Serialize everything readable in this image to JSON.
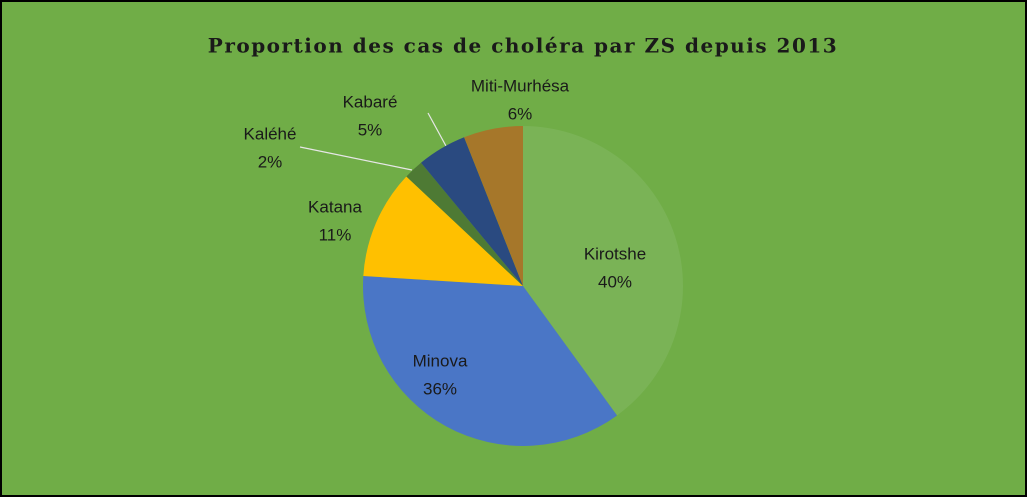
{
  "chart_data": {
    "type": "pie",
    "title": "Proportion des cas de choléra par ZS depuis 2013",
    "categories": [
      "Kirotshe",
      "Minova",
      "Katana",
      "Kaléhé",
      "Kabaré",
      "Miti-Murhésa"
    ],
    "values": [
      40,
      36,
      11,
      2,
      5,
      6
    ],
    "value_labels": [
      "40%",
      "36%",
      "11%",
      "2%",
      "5%",
      "6%"
    ],
    "colors": [
      "#7ab356",
      "#4a76c6",
      "#ffc000",
      "#4e7a34",
      "#2a4a80",
      "#a6772a"
    ]
  }
}
